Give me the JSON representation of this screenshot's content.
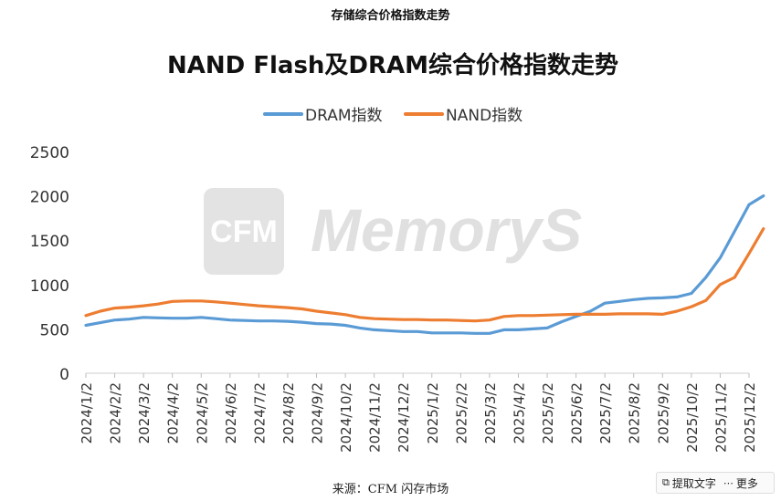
{
  "caption": "存储综合价格指数走势",
  "source": "来源：CFM 闪存市场",
  "watermark": {
    "logo_text": "CFM",
    "brand_text": "MemoryS"
  },
  "toolbar": {
    "extract_text_label": "提取文字",
    "more_label": "更多"
  },
  "chart_data": {
    "type": "line",
    "title": "NAND Flash及DRAM综合价格指数走势",
    "xlabel": "",
    "ylabel": "",
    "ylim": [
      0,
      2500
    ],
    "yticks": [
      0,
      500,
      1000,
      1500,
      2000,
      2500
    ],
    "legend_position": "top-center",
    "grid": false,
    "x_tick_labels": [
      "2024/1/2",
      "2024/2/2",
      "2024/3/2",
      "2024/4/2",
      "2024/5/2",
      "2024/6/2",
      "2024/7/2",
      "2024/8/2",
      "2024/9/2",
      "2024/10/2",
      "2024/11/2",
      "2024/12/2",
      "2025/1/2",
      "2025/2/2",
      "2025/3/2",
      "2025/4/2",
      "2025/5/2",
      "2025/6/2",
      "2025/7/2",
      "2025/8/2",
      "2025/9/2",
      "2025/10/2",
      "2025/11/2",
      "2025/12/2"
    ],
    "x": [
      0,
      0.5,
      1,
      1.5,
      2,
      2.5,
      3,
      3.5,
      4,
      4.5,
      5,
      5.5,
      6,
      6.5,
      7,
      7.5,
      8,
      8.5,
      9,
      9.5,
      10,
      10.5,
      11,
      11.5,
      12,
      12.5,
      13,
      13.5,
      14,
      14.5,
      15,
      15.5,
      16,
      16.5,
      17,
      17.5,
      18,
      18.5,
      19,
      19.5,
      20,
      20.5,
      21,
      21.5,
      22,
      22.5,
      23,
      23.5
    ],
    "series": [
      {
        "name": "DRAM指数",
        "color": "#5B9BD5",
        "values": [
          540,
          570,
          600,
          610,
          630,
          625,
          620,
          620,
          630,
          615,
          600,
          595,
          590,
          590,
          585,
          575,
          560,
          555,
          540,
          510,
          490,
          480,
          470,
          470,
          455,
          455,
          455,
          450,
          450,
          490,
          490,
          500,
          510,
          580,
          640,
          700,
          790,
          810,
          830,
          845,
          850,
          860,
          900,
          1080,
          1300,
          1600,
          1900,
          2000
        ]
      },
      {
        "name": "NAND指数",
        "color": "#ED7D31",
        "values": [
          650,
          700,
          735,
          745,
          760,
          780,
          810,
          815,
          815,
          805,
          790,
          775,
          760,
          750,
          740,
          725,
          700,
          680,
          660,
          630,
          615,
          610,
          605,
          605,
          600,
          600,
          595,
          590,
          600,
          640,
          650,
          650,
          655,
          660,
          665,
          665,
          665,
          670,
          670,
          670,
          665,
          700,
          750,
          820,
          1000,
          1080,
          1350,
          1630
        ]
      }
    ]
  }
}
